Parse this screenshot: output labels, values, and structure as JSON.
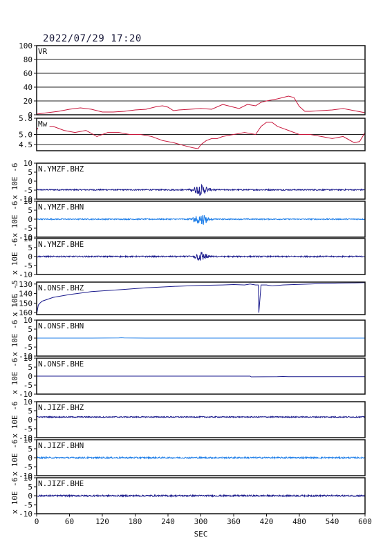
{
  "timestamp": "2022/07/29  17:20",
  "colors": {
    "vr": "#c8173c",
    "mw": "#c8173c",
    "dark": "#1a1a8c",
    "light": "#1e7ee8",
    "frame": "#111111"
  },
  "chart_data": {
    "type": "line",
    "xlabel": "SEC",
    "xlim": [
      0,
      600
    ],
    "xticks": [
      "0",
      "60",
      "120",
      "180",
      "240",
      "300",
      "360",
      "420",
      "480",
      "540",
      "600"
    ],
    "panels": [
      {
        "id": "vr",
        "label": "VR",
        "ylim": [
          0,
          100
        ],
        "yticks": [
          "100",
          "80",
          "60",
          "40",
          "20",
          "0"
        ],
        "grid": true,
        "series": {
          "x": [
            0,
            10,
            20,
            40,
            60,
            80,
            100,
            120,
            140,
            160,
            180,
            200,
            220,
            230,
            240,
            250,
            260,
            280,
            300,
            320,
            340,
            355,
            370,
            385,
            400,
            410,
            420,
            440,
            460,
            470,
            480,
            490,
            500,
            520,
            540,
            560,
            580,
            600
          ],
          "y": [
            1,
            2,
            3,
            5,
            8,
            10,
            8,
            4,
            4,
            5,
            7,
            8,
            12,
            13,
            11,
            6,
            7,
            8,
            9,
            8,
            15,
            12,
            9,
            15,
            13,
            18,
            20,
            23,
            27,
            25,
            12,
            5,
            5,
            6,
            7,
            9,
            6,
            3
          ]
        }
      },
      {
        "id": "mw",
        "label": "Mw",
        "ylim": [
          4.2,
          5.8
        ],
        "yticks": [
          "5.8",
          "5.0",
          "4.5"
        ],
        "grid": true,
        "series": {
          "x": [
            0,
            5,
            10,
            30,
            50,
            70,
            90,
            110,
            130,
            150,
            170,
            190,
            210,
            230,
            250,
            270,
            285,
            295,
            300,
            310,
            320,
            330,
            340,
            360,
            380,
            400,
            410,
            420,
            430,
            440,
            450,
            460,
            480,
            500,
            520,
            540,
            560,
            580,
            590,
            600
          ],
          "y": [
            5.2,
            5.5,
            5.4,
            5.4,
            5.2,
            5.1,
            5.2,
            4.9,
            5.1,
            5.1,
            5.0,
            5.0,
            4.9,
            4.7,
            4.6,
            4.45,
            4.35,
            4.3,
            4.5,
            4.7,
            4.8,
            4.8,
            4.9,
            5.0,
            5.1,
            5.0,
            5.4,
            5.6,
            5.6,
            5.4,
            5.3,
            5.2,
            5.0,
            5.0,
            4.9,
            4.8,
            4.9,
            4.6,
            4.65,
            5.1
          ]
        }
      },
      {
        "id": "ymzf-bhz",
        "label": "N.YMZF.BHZ",
        "ylabel": "x 10E -6",
        "ylim": [
          -10,
          10
        ],
        "yticks": [
          "10",
          "5",
          "0",
          "-5",
          "-10"
        ],
        "color": "dark",
        "baseline": -4.8,
        "noise": 0.35,
        "events": [
          {
            "t": 300,
            "amp": 3.0,
            "width": 35
          }
        ]
      },
      {
        "id": "ymzf-bhn",
        "label": "N.YMZF.BHN",
        "ylabel": "x 10E -6",
        "ylim": [
          -10,
          10
        ],
        "yticks": [
          "10",
          "5",
          "0",
          "-5",
          "-10"
        ],
        "color": "light",
        "baseline": 0,
        "noise": 0.3,
        "events": [
          {
            "t": 300,
            "amp": 3.2,
            "width": 35
          }
        ]
      },
      {
        "id": "ymzf-bhe",
        "label": "N.YMZF.BHE",
        "ylabel": "x 10E -6",
        "ylim": [
          -10,
          10
        ],
        "yticks": [
          "10",
          "5",
          "0",
          "-5",
          "-10"
        ],
        "color": "dark",
        "baseline": 0,
        "noise": 0.35,
        "events": [
          {
            "t": 300,
            "amp": 2.8,
            "width": 30
          }
        ]
      },
      {
        "id": "onsf-bhz",
        "label": "N.ONSF.BHZ",
        "ylabel": "x 10E -5",
        "ylim": [
          -162,
          -128
        ],
        "yticks": [
          "-130",
          "-140",
          "-150",
          "-160"
        ],
        "color": "dark",
        "series": {
          "x": [
            0,
            3,
            6,
            10,
            30,
            60,
            100,
            150,
            200,
            250,
            300,
            340,
            360,
            380,
            390,
            400,
            405,
            406,
            410,
            420,
            430,
            450,
            470,
            500,
            520,
            550,
            580,
            600
          ],
          "y": [
            -162,
            -152,
            -150,
            -148,
            -144,
            -141,
            -138,
            -136,
            -134,
            -132.5,
            -131.5,
            -131,
            -130.5,
            -131,
            -130,
            -131,
            -131,
            -160,
            -131,
            -131,
            -132,
            -131,
            -130.5,
            -130,
            -129.5,
            -129,
            -128.8,
            -128.5
          ]
        }
      },
      {
        "id": "onsf-bhn",
        "label": "N.ONSF.BHN",
        "ylabel": "x 10E -6",
        "ylim": [
          -10,
          10
        ],
        "yticks": [
          "10",
          "5",
          "0",
          "-5",
          "-10"
        ],
        "color": "light",
        "series": {
          "x": [
            0,
            100,
            150,
            155,
            160,
            200,
            400,
            600
          ],
          "y": [
            0,
            0,
            0.1,
            0.2,
            0.1,
            0,
            0,
            0
          ]
        }
      },
      {
        "id": "onsf-bhe",
        "label": "N.ONSF.BHE",
        "ylabel": "x 10E -6",
        "ylim": [
          -10,
          10
        ],
        "yticks": [
          "10",
          "5",
          "0",
          "-5",
          "-10"
        ],
        "color": "dark",
        "series": {
          "x": [
            0,
            200,
            390,
            392,
            440,
            450,
            460,
            470,
            600
          ],
          "y": [
            0,
            0,
            0,
            -0.4,
            -0.3,
            -0.2,
            -0.3,
            -0.3,
            -0.3
          ]
        }
      },
      {
        "id": "jizf-bhz",
        "label": "N.JIZF.BHZ",
        "ylabel": "x 10E -6",
        "ylim": [
          -10,
          10
        ],
        "yticks": [
          "10",
          "5",
          "0",
          "-5",
          "-10"
        ],
        "color": "dark",
        "baseline": 1.5,
        "noise": 0.3,
        "events": []
      },
      {
        "id": "jizf-bhn",
        "label": "N.JIZF.BHN",
        "ylabel": "x 10E -6",
        "ylim": [
          -10,
          10
        ],
        "yticks": [
          "10",
          "5",
          "0",
          "-5",
          "-10"
        ],
        "color": "light",
        "baseline": 0,
        "noise": 0.4,
        "events": []
      },
      {
        "id": "jizf-bhe",
        "label": "N.JIZF.BHE",
        "ylabel": "x 10E -6",
        "ylim": [
          -10,
          10
        ],
        "yticks": [
          "10",
          "5",
          "0",
          "-5",
          "-10"
        ],
        "color": "dark",
        "baseline": 0,
        "noise": 0.4,
        "events": []
      }
    ]
  }
}
